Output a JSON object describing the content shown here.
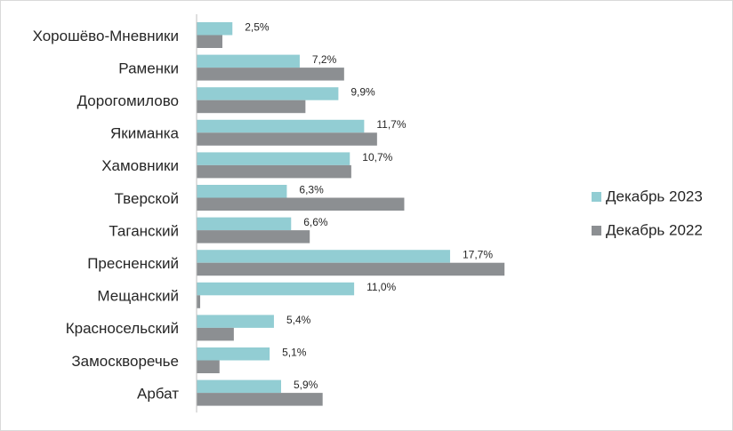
{
  "chart_data": {
    "type": "bar",
    "orientation": "horizontal",
    "categories": [
      "Хорошёво-Мневники",
      "Раменки",
      "Дорогомилово",
      "Якиманка",
      "Хамовники",
      "Тверской",
      "Таганский",
      "Пресненский",
      "Мещанский",
      "Красносельский",
      "Замоскворечье",
      "Арбат"
    ],
    "series": [
      {
        "name": "Декабрь 2023",
        "color": "#92CDD3",
        "values": [
          2.5,
          7.2,
          9.9,
          11.7,
          10.7,
          6.3,
          6.6,
          17.7,
          11.0,
          5.4,
          5.1,
          5.9
        ],
        "labels": [
          "2,5%",
          "7,2%",
          "9,9%",
          "11,7%",
          "10,7%",
          "6,3%",
          "6,6%",
          "17,7%",
          "11,0%",
          "5,4%",
          "5,1%",
          "5,9%"
        ]
      },
      {
        "name": "Декабрь 2022",
        "color": "#8C8F92",
        "values": [
          1.8,
          10.3,
          7.6,
          12.6,
          10.8,
          14.5,
          7.9,
          21.5,
          0.25,
          2.6,
          1.6,
          8.8
        ],
        "labels": []
      }
    ],
    "xlim": [
      0,
      25
    ],
    "grid": false,
    "legend_position": "right",
    "title": "",
    "xlabel": "",
    "ylabel": ""
  }
}
